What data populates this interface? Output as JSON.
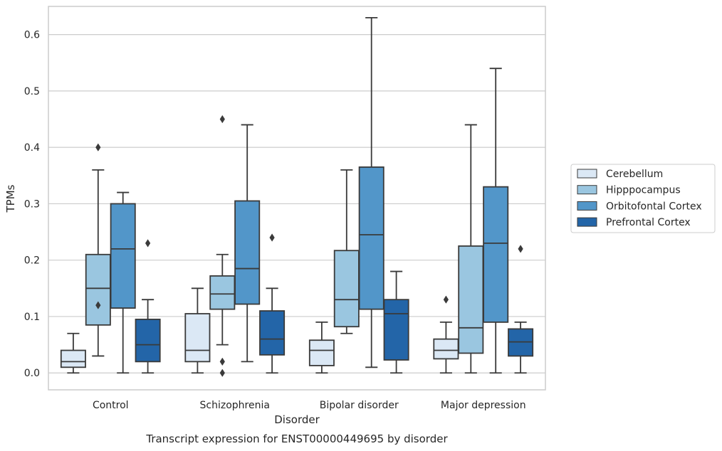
{
  "chart_data": {
    "type": "box",
    "title": "Transcript expression for ENST00000449695 by disorder",
    "xlabel": "Disorder",
    "ylabel": "TPMs",
    "ylim": [
      -0.03,
      0.65
    ],
    "yticks": [
      0.0,
      0.1,
      0.2,
      0.3,
      0.4,
      0.5,
      0.6
    ],
    "ytick_labels": [
      "0.0",
      "0.1",
      "0.2",
      "0.3",
      "0.4",
      "0.5",
      "0.6"
    ],
    "grid": "horizontal",
    "legend_position": "right",
    "categories": [
      "Control",
      "Schizophrenia",
      "Bipolar disorder",
      "Major depression"
    ],
    "series": [
      {
        "name": "Cerebellum",
        "color": "#dbe8f5",
        "boxes": [
          {
            "whislo": 0.0,
            "q1": 0.01,
            "med": 0.02,
            "q3": 0.04,
            "whishi": 0.07,
            "fliers": []
          },
          {
            "whislo": 0.0,
            "q1": 0.02,
            "med": 0.04,
            "q3": 0.105,
            "whishi": 0.15,
            "fliers": []
          },
          {
            "whislo": 0.0,
            "q1": 0.013,
            "med": 0.04,
            "q3": 0.058,
            "whishi": 0.09,
            "fliers": []
          },
          {
            "whislo": 0.0,
            "q1": 0.025,
            "med": 0.04,
            "q3": 0.06,
            "whishi": 0.09,
            "fliers": [
              0.13
            ]
          }
        ]
      },
      {
        "name": "Hipppocampus",
        "color": "#9ac6e0",
        "boxes": [
          {
            "whislo": 0.03,
            "q1": 0.085,
            "med": 0.15,
            "q3": 0.21,
            "whishi": 0.36,
            "fliers": [
              0.4,
              0.12
            ]
          },
          {
            "whislo": 0.05,
            "q1": 0.113,
            "med": 0.14,
            "q3": 0.172,
            "whishi": 0.21,
            "fliers": [
              0.45,
              0.02,
              0.0
            ]
          },
          {
            "whislo": 0.07,
            "q1": 0.082,
            "med": 0.13,
            "q3": 0.217,
            "whishi": 0.36,
            "fliers": []
          },
          {
            "whislo": 0.0,
            "q1": 0.035,
            "med": 0.08,
            "q3": 0.225,
            "whishi": 0.44,
            "fliers": []
          }
        ]
      },
      {
        "name": "Orbitofontal Cortex",
        "color": "#5296c9",
        "boxes": [
          {
            "whislo": 0.0,
            "q1": 0.115,
            "med": 0.22,
            "q3": 0.3,
            "whishi": 0.32,
            "fliers": []
          },
          {
            "whislo": 0.02,
            "q1": 0.122,
            "med": 0.185,
            "q3": 0.305,
            "whishi": 0.44,
            "fliers": []
          },
          {
            "whislo": 0.01,
            "q1": 0.113,
            "med": 0.245,
            "q3": 0.365,
            "whishi": 0.63,
            "fliers": []
          },
          {
            "whislo": 0.0,
            "q1": 0.09,
            "med": 0.23,
            "q3": 0.33,
            "whishi": 0.54,
            "fliers": []
          }
        ]
      },
      {
        "name": "Prefrontal Cortex",
        "color": "#2365a8",
        "boxes": [
          {
            "whislo": 0.0,
            "q1": 0.02,
            "med": 0.05,
            "q3": 0.095,
            "whishi": 0.13,
            "fliers": [
              0.23
            ]
          },
          {
            "whislo": 0.0,
            "q1": 0.032,
            "med": 0.06,
            "q3": 0.11,
            "whishi": 0.15,
            "fliers": [
              0.24
            ]
          },
          {
            "whislo": 0.0,
            "q1": 0.023,
            "med": 0.105,
            "q3": 0.13,
            "whishi": 0.18,
            "fliers": []
          },
          {
            "whislo": 0.0,
            "q1": 0.03,
            "med": 0.055,
            "q3": 0.078,
            "whishi": 0.09,
            "fliers": [
              0.22
            ]
          }
        ]
      }
    ],
    "line_color": "#3a3a3a",
    "grid_color": "#cccccc",
    "frame_color": "#cccccc"
  }
}
